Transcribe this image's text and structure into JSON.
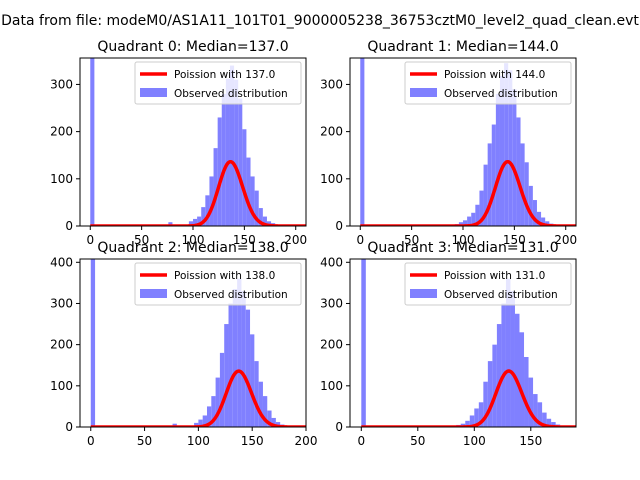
{
  "figure": {
    "suptitle": "Data from file: modeM0/AS1A11_101T01_9000005238_36753cztM0_level2_quad_clean.evt"
  },
  "colors": {
    "fit_line": "#ff0000",
    "observed_bars": "#8080ff",
    "axis": "#000000",
    "background": "#ffffff"
  },
  "chart_data": [
    {
      "type": "bar",
      "title": "Quadrant 0: Median=137.0",
      "median": 137.0,
      "xlim": [
        -10,
        210
      ],
      "ylim": [
        0,
        356
      ],
      "xticks": [
        0,
        50,
        100,
        150,
        200
      ],
      "yticks": [
        0,
        100,
        200,
        300
      ],
      "legend": {
        "placement": "upper-right",
        "entries": [
          "Poission with 137.0",
          "Observed distribution"
        ]
      },
      "fit_label": "Poission with 137.0",
      "hist_label": "Observed distribution",
      "bin_width": 4,
      "hist_x": [
        0,
        76,
        88,
        96,
        100,
        104,
        108,
        112,
        116,
        120,
        124,
        128,
        132,
        136,
        140,
        144,
        148,
        152,
        156,
        160,
        164,
        168,
        172,
        176,
        180,
        184,
        188,
        192
      ],
      "hist_y": [
        356,
        8,
        3,
        10,
        15,
        20,
        40,
        65,
        105,
        165,
        230,
        280,
        312,
        340,
        310,
        270,
        205,
        145,
        105,
        75,
        38,
        20,
        10,
        6,
        3,
        2,
        1,
        1
      ],
      "fit_lambda": 137.0,
      "fit_scale": 4000
    },
    {
      "type": "bar",
      "title": "Quadrant 1: Median=144.0",
      "median": 144.0,
      "xlim": [
        -10,
        210
      ],
      "ylim": [
        0,
        356
      ],
      "xticks": [
        0,
        50,
        100,
        150,
        200
      ],
      "yticks": [
        0,
        100,
        200,
        300
      ],
      "legend": {
        "placement": "upper-right",
        "entries": [
          "Poission with 144.0",
          "Observed distribution"
        ]
      },
      "fit_label": "Poission with 144.0",
      "hist_label": "Observed distribution",
      "bin_width": 4,
      "hist_x": [
        0,
        84,
        92,
        96,
        100,
        104,
        108,
        112,
        116,
        120,
        124,
        128,
        132,
        136,
        140,
        144,
        148,
        152,
        156,
        160,
        164,
        168,
        172,
        176,
        180,
        184,
        188,
        192
      ],
      "hist_y": [
        356,
        2,
        4,
        8,
        12,
        20,
        28,
        45,
        75,
        130,
        175,
        215,
        280,
        318,
        345,
        330,
        290,
        230,
        175,
        135,
        85,
        55,
        30,
        18,
        10,
        5,
        2,
        1
      ],
      "fit_lambda": 144.0,
      "fit_scale": 4100
    },
    {
      "type": "bar",
      "title": "Quadrant 2: Median=138.0",
      "median": 138.0,
      "xlim": [
        -10,
        200
      ],
      "ylim": [
        0,
        408
      ],
      "xticks": [
        0,
        50,
        100,
        150,
        200
      ],
      "yticks": [
        0,
        100,
        200,
        300,
        400
      ],
      "legend": {
        "placement": "upper-right",
        "entries": [
          "Poission with 138.0",
          "Observed distribution"
        ]
      },
      "fit_label": "Poission with 138.0",
      "hist_label": "Observed distribution",
      "bin_width": 4,
      "hist_x": [
        0,
        76,
        88,
        96,
        100,
        104,
        108,
        112,
        116,
        120,
        124,
        128,
        132,
        136,
        140,
        144,
        148,
        152,
        156,
        160,
        164,
        168,
        172,
        176,
        180,
        184,
        188
      ],
      "hist_y": [
        408,
        8,
        3,
        10,
        18,
        28,
        50,
        75,
        120,
        180,
        250,
        300,
        335,
        360,
        330,
        285,
        225,
        160,
        110,
        75,
        40,
        22,
        12,
        6,
        3,
        2,
        1
      ],
      "fit_lambda": 138.0,
      "fit_scale": 4000
    },
    {
      "type": "bar",
      "title": "Quadrant 3: Median=131.0",
      "median": 131.0,
      "xlim": [
        -10,
        190
      ],
      "ylim": [
        0,
        408
      ],
      "xticks": [
        0,
        50,
        100,
        150
      ],
      "yticks": [
        0,
        100,
        200,
        300,
        400
      ],
      "legend": {
        "placement": "upper-right",
        "entries": [
          "Poission with 131.0",
          "Observed distribution"
        ]
      },
      "fit_label": "Poission with 131.0",
      "hist_label": "Observed distribution",
      "bin_width": 4,
      "hist_x": [
        0,
        76,
        84,
        88,
        92,
        96,
        100,
        104,
        108,
        112,
        116,
        120,
        124,
        128,
        132,
        136,
        140,
        144,
        148,
        152,
        156,
        160,
        164,
        168,
        172,
        176,
        180
      ],
      "hist_y": [
        408,
        3,
        5,
        8,
        15,
        28,
        45,
        60,
        110,
        160,
        200,
        250,
        300,
        360,
        330,
        275,
        230,
        170,
        120,
        80,
        60,
        35,
        20,
        12,
        6,
        3,
        1
      ],
      "fit_lambda": 131.0,
      "fit_scale": 3900
    }
  ]
}
